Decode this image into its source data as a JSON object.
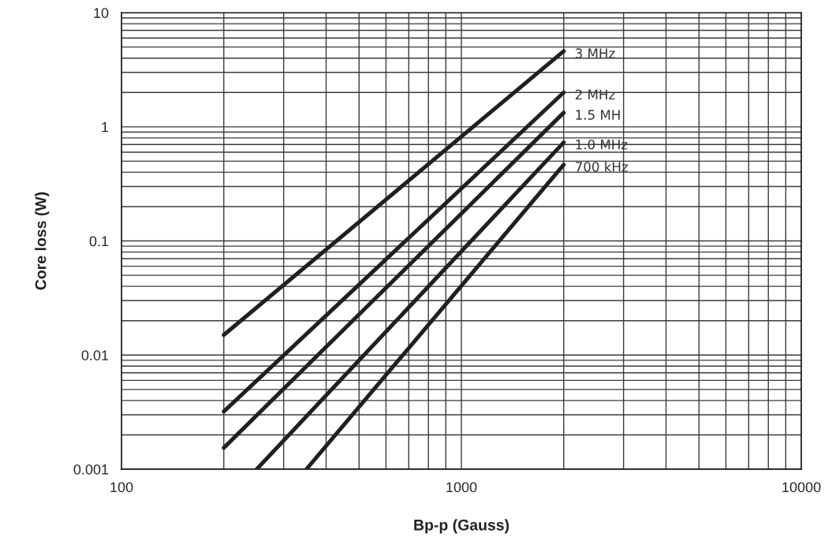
{
  "chart_data": {
    "type": "line",
    "xlabel": "Bp-p (Gauss)",
    "ylabel": "Core loss (W)",
    "log": "xy",
    "xlim": [
      100,
      10000
    ],
    "ylim": [
      0.001,
      10
    ],
    "xticks": [
      100,
      1000,
      10000
    ],
    "yticks": [
      0.001,
      0.01,
      0.1,
      1,
      10
    ],
    "grid": true,
    "line_style": "solid",
    "series": [
      {
        "name": "3 MHz",
        "color": "#231f20",
        "x": [
          200,
          2000
        ],
        "values": [
          0.015,
          4.6
        ]
      },
      {
        "name": "2 MHz",
        "color": "#231f20",
        "x": [
          200,
          2000
        ],
        "values": [
          0.0032,
          2.0
        ]
      },
      {
        "name": "1.5 MH",
        "color": "#231f20",
        "x": [
          200,
          2000
        ],
        "values": [
          0.00154,
          1.33
        ]
      },
      {
        "name": "1.0 MHz",
        "color": "#231f20",
        "x": [
          250,
          2000
        ],
        "values": [
          0.001,
          0.73
        ]
      },
      {
        "name": "700 kHz",
        "color": "#231f20",
        "x": [
          350,
          2000
        ],
        "values": [
          0.001,
          0.466
        ]
      }
    ]
  }
}
